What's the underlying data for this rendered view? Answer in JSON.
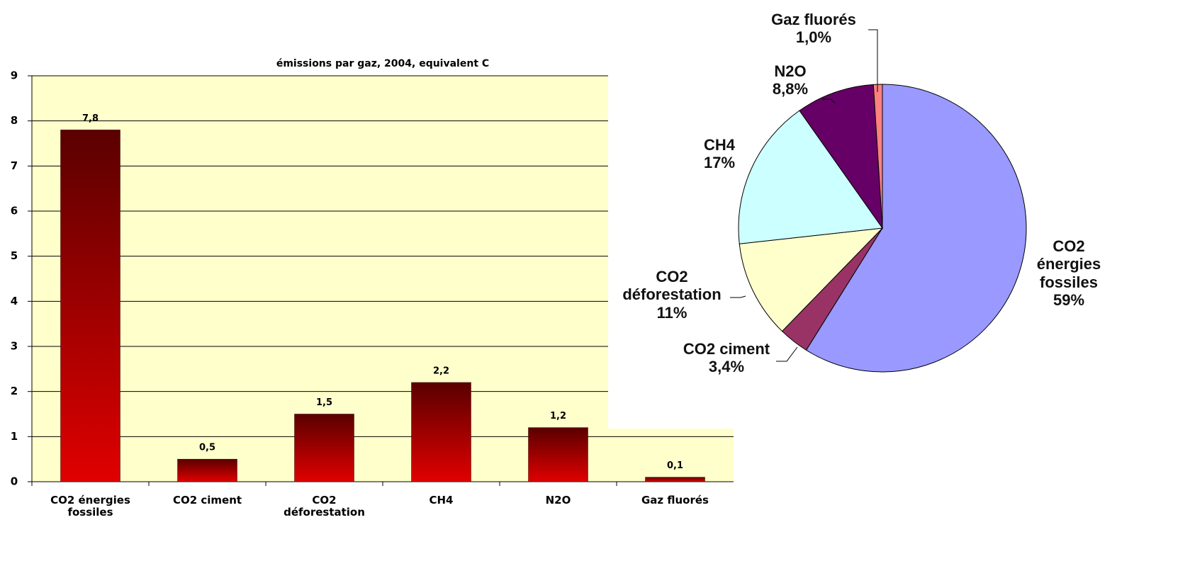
{
  "chart_data": [
    {
      "type": "bar",
      "title": "émissions par gaz, 2004, equivalent C",
      "categories": [
        "CO2 énergies fossiles",
        "CO2 ciment",
        "CO2 déforestation",
        "CH4",
        "N2O",
        "Gaz fluorés"
      ],
      "values": [
        7.8,
        0.5,
        1.5,
        2.2,
        1.2,
        0.1
      ],
      "value_labels": [
        "7,8",
        "0,5",
        "1,5",
        "2,2",
        "1,2",
        "0,1"
      ],
      "color": "#e00000",
      "ylim": [
        0,
        9
      ],
      "yticks": [
        0,
        1,
        2,
        3,
        4,
        5,
        6,
        7,
        8,
        9
      ],
      "grid": true
    },
    {
      "type": "pie",
      "categories": [
        "CO2 énergies fossiles",
        "CO2 ciment",
        "CO2 déforestation",
        "CH4",
        "N2O",
        "Gaz fluorés"
      ],
      "values": [
        59,
        3.4,
        11,
        17,
        8.8,
        1.0
      ],
      "value_labels": [
        "59%",
        "3,4%",
        "11%",
        "17%",
        "8,8%",
        "1,0%"
      ],
      "colors": [
        "#9999ff",
        "#993366",
        "#ffffcc",
        "#ccffff",
        "#660066",
        "#ff8080"
      ]
    }
  ]
}
